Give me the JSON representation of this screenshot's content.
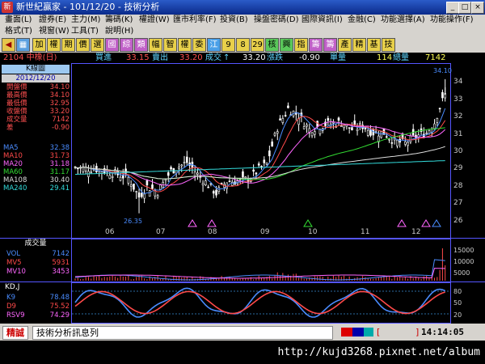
{
  "window": {
    "title": "新世紀贏家 - 101/12/20 - 技術分析"
  },
  "menu": [
    "畫面(L)",
    "證券(E)",
    "主力(M)",
    "籌碼(K)",
    "權證(W)",
    "匯市利率(F)",
    "投資(B)",
    "操盤密碼(D)",
    "國際資訊(I)",
    "金融(C)",
    "功能選擇(A)",
    "功能操作(F)",
    "格式(T)",
    "視窗(W)",
    "工具(T)",
    "說明(H)"
  ],
  "toolbar": [
    "加",
    "權",
    "期",
    "價",
    "選",
    "國",
    "綜",
    "類",
    "幅",
    "智",
    "權",
    "委",
    "江",
    "9",
    "8",
    "29",
    "核",
    "興",
    "指",
    "籌",
    "籌",
    "產",
    "精",
    "基",
    "技"
  ],
  "quote": {
    "symbol": "2104 中橡(日)",
    "buy_label": "買進",
    "buy": "33.15",
    "sell_label": "賣出",
    "sell": "33.20",
    "last_label": "成交",
    "last": "33.20",
    "change_label": "漲跌",
    "change": "-0.90",
    "volume_label": "單量",
    "volume": "114",
    "total_label": "總量",
    "total": "7142"
  },
  "kpanel": {
    "header": "K線圖",
    "date": "2012/12/20",
    "rows": [
      {
        "k": "開盤價",
        "v": "34.10"
      },
      {
        "k": "最高價",
        "v": "34.10"
      },
      {
        "k": "最低價",
        "v": "32.95"
      },
      {
        "k": "收盤價",
        "v": "33.20"
      },
      {
        "k": "成交量",
        "v": "7142"
      },
      {
        "k": "差",
        "v": "-0.90"
      }
    ],
    "ma": [
      {
        "k": "MA5",
        "v": "32.38",
        "color": "#4a8cff"
      },
      {
        "k": "MA10",
        "v": "31.73",
        "color": "#ff4a4a"
      },
      {
        "k": "MA20",
        "v": "31.18",
        "color": "#ff66ff"
      },
      {
        "k": "MA60",
        "v": "31.17",
        "color": "#33dd33"
      },
      {
        "k": "MA108",
        "v": "30.40",
        "color": "#dddddd"
      },
      {
        "k": "MA240",
        "v": "29.41",
        "color": "#33dddd"
      }
    ]
  },
  "volpanel": {
    "header": "成交量",
    "rows": [
      {
        "k": "VOL",
        "v": "7142",
        "color": "#4a8cff"
      },
      {
        "k": "MV5",
        "v": "5931",
        "color": "#ff4a4a"
      },
      {
        "k": "MV10",
        "v": "3453",
        "color": "#ff66ff"
      }
    ]
  },
  "kdpanel": {
    "header": "KD,J",
    "rows": [
      {
        "k": "K9",
        "v": "78.48",
        "color": "#4a8cff"
      },
      {
        "k": "D9",
        "v": "75.52",
        "color": "#ff4a4a"
      },
      {
        "k": "RSV9",
        "v": "74.29",
        "color": "#ff66ff"
      }
    ]
  },
  "chart_data": {
    "type": "line",
    "x_ticks": [
      "06",
      "07",
      "08",
      "09",
      "10",
      "11",
      "12"
    ],
    "price_ticks": [
      "34",
      "33",
      "32",
      "31",
      "30",
      "29",
      "28",
      "27",
      "26"
    ],
    "price_high_label": "34.10",
    "price_low_label": "26.35",
    "vol_ticks": [
      "15000",
      "10000",
      "5000"
    ],
    "kd_ticks": [
      "80",
      "50",
      "20"
    ]
  },
  "status": {
    "left_label": "精誠",
    "message": "技術分析訊息列",
    "bracket_left": "[",
    "bracket_right": "]",
    "time": "14:14:05"
  },
  "watermark": "http://kujd3268.pixnet.net/album"
}
